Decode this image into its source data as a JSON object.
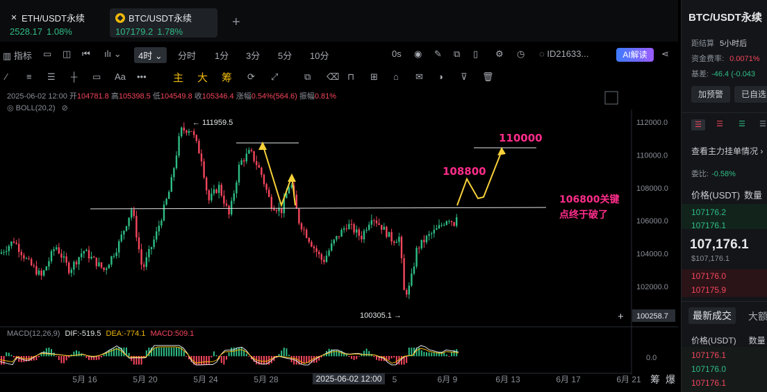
{
  "tabs": [
    {
      "symbol": "ETH/USDT永续",
      "price": "2528.17",
      "change": "1.08%",
      "active": false
    },
    {
      "symbol": "BTC/USDT永续",
      "price": "107179.2",
      "change": "1.78%",
      "active": true
    }
  ],
  "toolbar": {
    "indicators_label": "指标",
    "period_active": "4时",
    "periods": [
      "分时",
      "1分",
      "3分",
      "5分",
      "10分"
    ],
    "zero_label": "0s",
    "id_label": "ID21633...",
    "ai_label": "AI解读"
  },
  "draw_toolbar": {
    "aa": "Aa",
    "main": "主",
    "big": "大",
    "chip": "筹"
  },
  "ohlc": {
    "date": "2025-06-02 12:00",
    "open_label": "开",
    "open": "104781.8",
    "high_label": "高",
    "high": "105398.5",
    "low_label": "低",
    "low": "104549.8",
    "close_label": "收",
    "close": "105346.4",
    "chg_label": "涨幅",
    "chg": "0.54%(564.6)",
    "amp_label": "振幅",
    "amp": "0.81%"
  },
  "boll_label": "BOLL(20,2)",
  "macd": {
    "label": "MACD(12,26,9)",
    "dif": "DIF:-519.5",
    "dea": "DEA:-774.1",
    "macd": "MACD:509.1",
    "zero_tick": "0.0"
  },
  "chart_data": {
    "type": "candlestick",
    "y_ticks": [
      "112000.0",
      "110000.0",
      "108000.0",
      "106000.0",
      "104000.0",
      "102000.0"
    ],
    "y_values": [
      112000,
      110000,
      108000,
      106000,
      104000,
      102000
    ],
    "crosshair_price": "100258.7",
    "x_ticks": [
      "5月 16",
      "5月 20",
      "5月 24",
      "5月 28",
      "6月 9",
      "6月 13",
      "6月 17",
      "6月 21"
    ],
    "x_crosshair_label": "2025-06-02 12:00",
    "x_partial_label": "5",
    "high_marker": "111959.5",
    "low_marker": "100305.1",
    "annotations": {
      "key_level_line1": "106800关键",
      "key_level_line2": "点终于破了",
      "target1": "108800",
      "target2": "110000"
    },
    "colors": {
      "up": "#2fbd85",
      "down": "#f6465d",
      "annotation_pink": "#ff2d8a",
      "annotation_arrow": "#f7d13a"
    }
  },
  "bottom_right": {
    "btn1": "筹",
    "btn2": "爆"
  },
  "right_panel": {
    "title": "BTC/USDT永续",
    "settle_label": "距结算",
    "settle_value": "5小时后",
    "funding_label": "资金费率:",
    "funding_value": "0.0071%",
    "basis_label": "基差:",
    "basis_value": "-46.4 (-0.043",
    "alert_btn": "加预警",
    "fav_btn": "已自选",
    "orderbook_link": "查看主力挂单情况 ›",
    "ratio_label": "委比:",
    "ratio_value": "-0.58%",
    "price_header": "价格(USDT)",
    "qty_header": "数量",
    "asks_green": [
      "107176.2",
      "107176.1"
    ],
    "last_price": "107,176.1",
    "last_price_usd": "$107,176.1",
    "bids_red": [
      "107176.0",
      "107175.9"
    ],
    "trades_tab": "最新成交",
    "trades_tab2": "大额",
    "trades_price_header": "价格(USDT)",
    "trades_qty_header": "数量",
    "trades": [
      "107176.1",
      "107176.0",
      "107176.1"
    ]
  }
}
